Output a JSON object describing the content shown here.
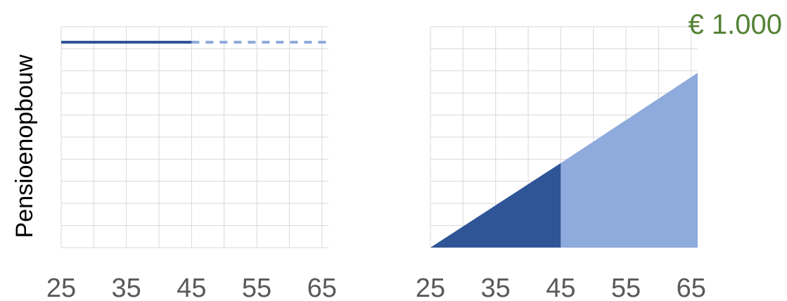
{
  "chart_data": [
    {
      "type": "line",
      "ylabel": "Pensioenopbouw",
      "x_ticks": [
        "25",
        "35",
        "45",
        "55",
        "65"
      ],
      "xlim": [
        25,
        66
      ],
      "ylim": [
        0,
        10
      ],
      "grid": true,
      "series": [
        {
          "style": "solid",
          "color": "#2f5597",
          "x": [
            25,
            45
          ],
          "y": [
            9.3,
            9.3
          ]
        },
        {
          "style": "dashed",
          "color": "#8faadc",
          "x": [
            45,
            66
          ],
          "y": [
            9.3,
            9.3
          ]
        }
      ]
    },
    {
      "type": "area",
      "x_ticks": [
        "25",
        "35",
        "45",
        "55",
        "65"
      ],
      "xlim": [
        25,
        66
      ],
      "ylim": [
        0,
        1150
      ],
      "grid": true,
      "annotation": "€ 1.000",
      "annotation_color": "#548235",
      "series": [
        {
          "color": "#2f5597",
          "x": [
            25,
            45
          ],
          "y": [
            0,
            440
          ]
        },
        {
          "color": "#8faadc",
          "x": [
            45,
            66
          ],
          "y": [
            440,
            910
          ]
        }
      ]
    }
  ]
}
